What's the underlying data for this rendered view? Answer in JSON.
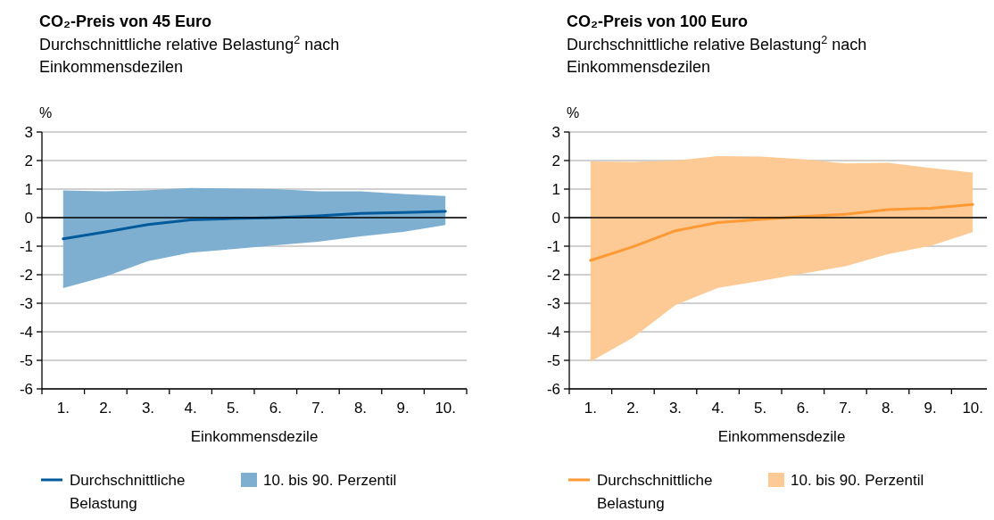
{
  "chart_data": [
    {
      "type": "line",
      "title": "CO₂-Preis von 45 Euro",
      "subtitle": "Durchschnittliche relative Belastung$^{2}$ nach Einkommensdezilen",
      "ylabel": "%",
      "xlabel": "Einkommensdezile",
      "categories": [
        "1.",
        "2.",
        "3.",
        "4.",
        "5.",
        "6.",
        "7.",
        "8.",
        "9.",
        "10."
      ],
      "ylim": [
        -6,
        3
      ],
      "yticks": [
        -6,
        -5,
        -4,
        -3,
        -2,
        -1,
        0,
        1,
        2,
        3
      ],
      "grid": "y",
      "legend": "bottom",
      "ref_lines": [
        {
          "axis": "y",
          "value": 0,
          "color": "#000000"
        }
      ],
      "series": [
        {
          "name": "Durchschnittliche Belastung",
          "color": "#005a9c",
          "values": [
            -0.74,
            -0.5,
            -0.24,
            -0.08,
            -0.03,
            0,
            0.06,
            0.15,
            0.18,
            0.22
          ],
          "lower": [
            -2.47,
            -2.06,
            -1.52,
            -1.23,
            -1.1,
            -0.97,
            -0.84,
            -0.66,
            -0.5,
            -0.26
          ],
          "upper": [
            0.95,
            0.92,
            0.96,
            1.04,
            1.02,
            1.0,
            0.92,
            0.92,
            0.83,
            0.76
          ]
        },
        {
          "name": "10. bis 90. Perzentil",
          "type": "area",
          "color": "#7fafd0",
          "values": [
            null,
            null,
            null,
            null,
            null,
            null,
            null,
            null,
            null,
            null
          ]
        }
      ]
    },
    {
      "type": "line",
      "title": "CO₂-Preis von 100 Euro",
      "subtitle": "Durchschnittliche relative Belastung$^{2}$ nach Einkommensdezilen",
      "ylabel": "%",
      "xlabel": "Einkommensdezile",
      "categories": [
        "1.",
        "2.",
        "3.",
        "4.",
        "5.",
        "6.",
        "7.",
        "8.",
        "9.",
        "10."
      ],
      "ylim": [
        -6,
        3
      ],
      "yticks": [
        -6,
        -5,
        -4,
        -3,
        -2,
        -1,
        0,
        1,
        2,
        3
      ],
      "grid": "y",
      "legend": "bottom",
      "ref_lines": [
        {
          "axis": "y",
          "value": 0,
          "color": "#000000"
        }
      ],
      "series": [
        {
          "name": "Durchschnittliche Belastung",
          "color": "#ff9933",
          "values": [
            -1.5,
            -1.02,
            -0.46,
            -0.17,
            -0.06,
            0.04,
            0.12,
            0.28,
            0.33,
            0.46
          ],
          "lower": [
            -5.05,
            -4.2,
            -3.06,
            -2.46,
            -2.22,
            -1.96,
            -1.7,
            -1.28,
            -0.99,
            -0.51
          ],
          "upper": [
            1.97,
            1.95,
            2.0,
            2.16,
            2.14,
            2.05,
            1.9,
            1.92,
            1.74,
            1.58
          ]
        },
        {
          "name": "10. bis 90. Perzentil",
          "type": "area",
          "color": "#fdca96",
          "values": [
            null,
            null,
            null,
            null,
            null,
            null,
            null,
            null,
            null,
            null
          ]
        }
      ]
    }
  ]
}
